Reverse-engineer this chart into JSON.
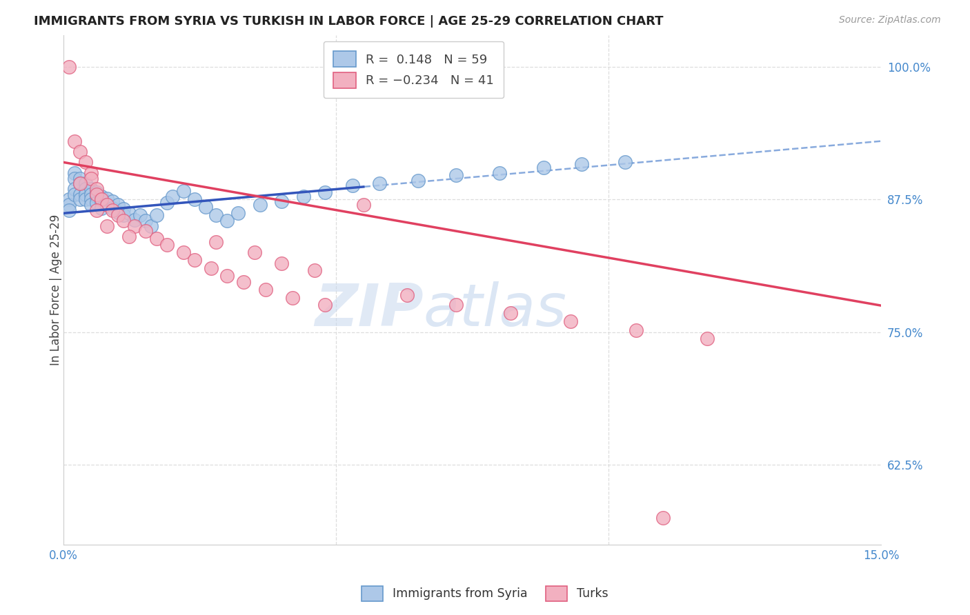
{
  "title": "IMMIGRANTS FROM SYRIA VS TURKISH IN LABOR FORCE | AGE 25-29 CORRELATION CHART",
  "source": "Source: ZipAtlas.com",
  "ylabel": "In Labor Force | Age 25-29",
  "xlim": [
    0.0,
    0.15
  ],
  "ylim": [
    0.55,
    1.03
  ],
  "yticks": [
    0.625,
    0.75,
    0.875,
    1.0
  ],
  "yticklabels": [
    "62.5%",
    "75.0%",
    "87.5%",
    "100.0%"
  ],
  "legend_label_blue": "Immigrants from Syria",
  "legend_label_pink": "Turks",
  "blue_color": "#adc8e8",
  "pink_color": "#f2b0c0",
  "blue_edge": "#6699cc",
  "pink_edge": "#e06080",
  "trend_blue_solid_color": "#3355bb",
  "trend_pink_color": "#e04060",
  "dashed_blue_color": "#88aadd",
  "watermark_zip": "ZIP",
  "watermark_atlas": "atlas",
  "blue_scatter_x": [
    0.001,
    0.001,
    0.001,
    0.002,
    0.002,
    0.002,
    0.002,
    0.003,
    0.003,
    0.003,
    0.003,
    0.004,
    0.004,
    0.004,
    0.004,
    0.005,
    0.005,
    0.005,
    0.005,
    0.006,
    0.006,
    0.006,
    0.007,
    0.007,
    0.007,
    0.008,
    0.008,
    0.009,
    0.009,
    0.01,
    0.01,
    0.011,
    0.011,
    0.012,
    0.013,
    0.014,
    0.015,
    0.016,
    0.017,
    0.019,
    0.02,
    0.022,
    0.024,
    0.026,
    0.028,
    0.03,
    0.032,
    0.036,
    0.04,
    0.044,
    0.048,
    0.053,
    0.058,
    0.065,
    0.072,
    0.08,
    0.088,
    0.095,
    0.103
  ],
  "blue_scatter_y": [
    0.875,
    0.87,
    0.865,
    0.9,
    0.895,
    0.885,
    0.88,
    0.895,
    0.89,
    0.88,
    0.875,
    0.89,
    0.885,
    0.88,
    0.875,
    0.885,
    0.88,
    0.875,
    0.87,
    0.882,
    0.878,
    0.872,
    0.878,
    0.873,
    0.867,
    0.876,
    0.87,
    0.873,
    0.867,
    0.87,
    0.863,
    0.866,
    0.86,
    0.862,
    0.856,
    0.86,
    0.855,
    0.85,
    0.86,
    0.872,
    0.878,
    0.883,
    0.875,
    0.868,
    0.86,
    0.855,
    0.862,
    0.87,
    0.873,
    0.878,
    0.882,
    0.888,
    0.89,
    0.893,
    0.898,
    0.9,
    0.905,
    0.908,
    0.91
  ],
  "pink_scatter_x": [
    0.001,
    0.002,
    0.003,
    0.004,
    0.005,
    0.005,
    0.006,
    0.006,
    0.007,
    0.008,
    0.009,
    0.01,
    0.011,
    0.013,
    0.015,
    0.017,
    0.019,
    0.022,
    0.024,
    0.027,
    0.03,
    0.033,
    0.037,
    0.042,
    0.048,
    0.055,
    0.063,
    0.072,
    0.082,
    0.093,
    0.105,
    0.118,
    0.028,
    0.035,
    0.04,
    0.046,
    0.003,
    0.006,
    0.008,
    0.012,
    0.11
  ],
  "pink_scatter_y": [
    1.0,
    0.93,
    0.92,
    0.91,
    0.9,
    0.895,
    0.885,
    0.88,
    0.875,
    0.87,
    0.865,
    0.86,
    0.855,
    0.85,
    0.845,
    0.838,
    0.832,
    0.825,
    0.818,
    0.81,
    0.803,
    0.797,
    0.79,
    0.782,
    0.776,
    0.87,
    0.785,
    0.776,
    0.768,
    0.76,
    0.752,
    0.744,
    0.835,
    0.825,
    0.815,
    0.808,
    0.89,
    0.865,
    0.85,
    0.84,
    0.575
  ],
  "trend_blue_x_solid_start": 0.0,
  "trend_blue_x_solid_end": 0.055,
  "trend_blue_x_dash_start": 0.0,
  "trend_blue_x_dash_end": 0.15,
  "trend_blue_y_at_0": 0.862,
  "trend_blue_y_at_015": 0.93,
  "trend_pink_x_start": 0.0,
  "trend_pink_x_end": 0.15,
  "trend_pink_y_at_0": 0.91,
  "trend_pink_y_at_015": 0.775
}
